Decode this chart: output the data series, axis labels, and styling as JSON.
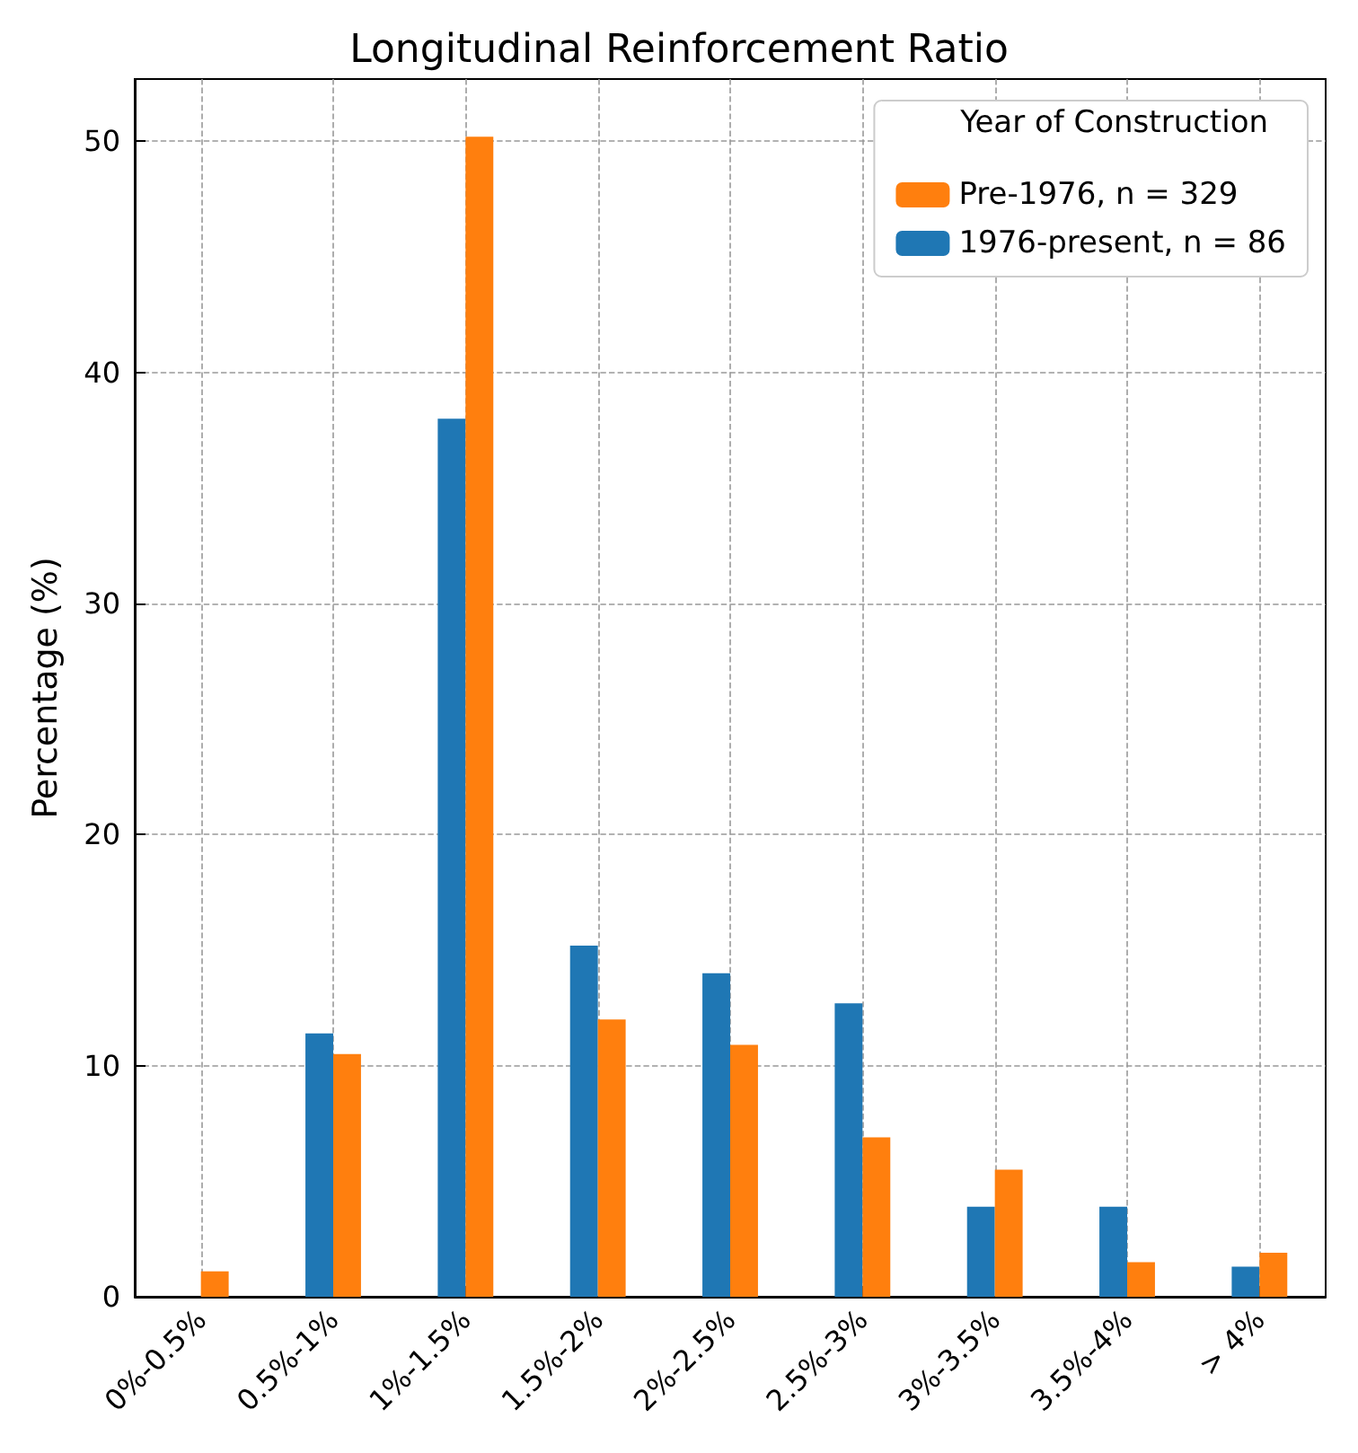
{
  "chart_data": {
    "type": "bar",
    "title": "Longitudinal Reinforcement Ratio",
    "ylabel": "Percentage (%)",
    "legend_title": "Year of Construction",
    "categories": [
      "0%-0.5%",
      "0.5%-1%",
      "1%-1.5%",
      "1.5%-2%",
      "2%-2.5%",
      "2.5%-3%",
      "3%-3.5%",
      "3.5%-4%",
      "> 4%"
    ],
    "series": [
      {
        "name": "1976-present, n = 86",
        "color": "#1f77b4",
        "values": [
          0,
          11.4,
          38.0,
          15.2,
          14.0,
          12.7,
          3.9,
          3.9,
          1.3
        ]
      },
      {
        "name": "Pre-1976, n = 329",
        "color": "#ff7f0e",
        "values": [
          1.1,
          10.5,
          50.2,
          12.0,
          10.9,
          6.9,
          5.5,
          1.5,
          1.9
        ]
      }
    ],
    "ylim": [
      0,
      52.7
    ],
    "yticks": [
      0,
      10,
      20,
      30,
      40,
      50
    ],
    "grid": true,
    "legend": "top right"
  }
}
